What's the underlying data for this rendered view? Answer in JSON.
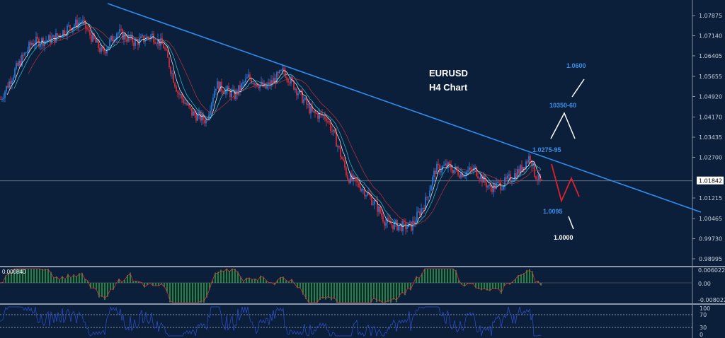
{
  "chart_data": {
    "type": "candlestick",
    "symbol": "EURUSD",
    "timeframe": "H4 Chart",
    "ylim": [
      0.98995,
      1.07875
    ],
    "yticks": [
      "1.07875",
      "1.07140",
      "1.06405",
      "1.05655",
      "1.04920",
      "1.04170",
      "1.03435",
      "1.02700",
      "1.01215",
      "1.00465",
      "0.99730",
      "0.98995"
    ],
    "current_price": "1.01842",
    "price_path": [
      [
        0,
        1.0483
      ],
      [
        10,
        1.0586
      ],
      [
        22,
        1.0689
      ],
      [
        37,
        1.0702
      ],
      [
        47,
        1.0741
      ],
      [
        57,
        1.0767
      ],
      [
        65,
        1.0702
      ],
      [
        72,
        1.0651
      ],
      [
        82,
        1.0728
      ],
      [
        95,
        1.0689
      ],
      [
        107,
        1.0715
      ],
      [
        115,
        1.0676
      ],
      [
        125,
        1.0509
      ],
      [
        135,
        1.0431
      ],
      [
        145,
        1.0405
      ],
      [
        152,
        1.0535
      ],
      [
        165,
        1.0496
      ],
      [
        175,
        1.0561
      ],
      [
        187,
        1.0522
      ],
      [
        200,
        1.0586
      ],
      [
        210,
        1.0509
      ],
      [
        220,
        1.0431
      ],
      [
        230,
        1.0418
      ],
      [
        237,
        1.0328
      ],
      [
        245,
        1.0199
      ],
      [
        255,
        1.016
      ],
      [
        265,
        1.0096
      ],
      [
        272,
        1.0031
      ],
      [
        282,
        1.0018
      ],
      [
        290,
        1.0018
      ],
      [
        300,
        1.0109
      ],
      [
        307,
        1.0225
      ],
      [
        315,
        1.0238
      ],
      [
        325,
        1.0212
      ],
      [
        335,
        1.0225
      ],
      [
        345,
        1.016
      ],
      [
        355,
        1.0173
      ],
      [
        367,
        1.0225
      ],
      [
        374,
        1.0276
      ],
      [
        377,
        1.0212
      ],
      [
        382,
        1.0173
      ]
    ],
    "trendline": [
      [
        76,
        1.08314
      ],
      [
        495,
        1.007
      ]
    ],
    "annotations": {
      "target_high": "1.0600",
      "resistance2": "10350-60",
      "resistance1": "1.0275-95",
      "support1": "1.0095",
      "target_low": "1.0000"
    },
    "macd": {
      "label": "0.000840",
      "ticks": [
        "0.006022",
        "0.00",
        "-0.008022"
      ]
    },
    "rsi": {
      "ticks": [
        "100",
        "70",
        "30",
        "0"
      ]
    }
  },
  "colors": {
    "bg": "#0b1f3a",
    "bull": "#2f7fe0",
    "bear": "#e0303a",
    "trend": "#2f8cf0",
    "macd": "#2ecc40"
  }
}
